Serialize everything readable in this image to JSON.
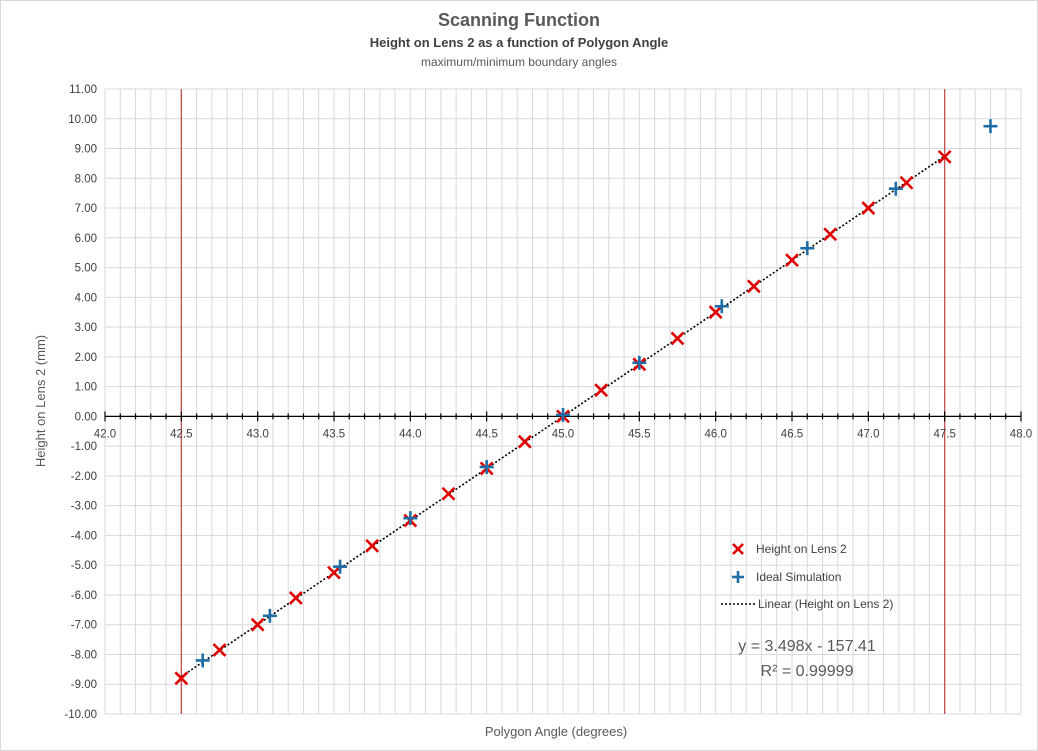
{
  "chart_data": {
    "type": "scatter",
    "title": "Scanning Function",
    "subtitle": "Height on Lens 2 as a function of Polygon Angle",
    "subtitle2": "maximum/minimum boundary angles",
    "xlabel": "Polygon Angle (degrees)",
    "ylabel": "Height on Lens 2 (mm)",
    "xlim": [
      42.0,
      48.0
    ],
    "ylim": [
      -10.0,
      11.0
    ],
    "x_ticks": [
      "42.0",
      "42.5",
      "43.0",
      "43.5",
      "44.0",
      "44.5",
      "45.0",
      "45.5",
      "46.0",
      "46.5",
      "47.0",
      "47.5",
      "48.0"
    ],
    "y_ticks": [
      "11.00",
      "10.00",
      "9.00",
      "8.00",
      "7.00",
      "6.00",
      "5.00",
      "4.00",
      "3.00",
      "2.00",
      "1.00",
      "0.00",
      "-1.00",
      "-2.00",
      "-3.00",
      "-4.00",
      "-5.00",
      "-6.00",
      "-7.00",
      "-8.00",
      "-9.00",
      "-10.00"
    ],
    "grid": true,
    "boundary_lines_x": [
      42.5,
      47.5
    ],
    "colors": {
      "height_marker": "#e00000",
      "ideal_marker": "#1f6ea8",
      "boundary_line": "#c0504d",
      "trendline": "#000000",
      "grid": "#d9d9d9"
    },
    "series": [
      {
        "name": "Height on Lens 2",
        "marker": "x",
        "x": [
          42.5,
          42.75,
          43.0,
          43.25,
          43.5,
          43.75,
          44.0,
          44.25,
          44.5,
          44.75,
          45.0,
          45.25,
          45.5,
          45.75,
          46.0,
          46.25,
          46.5,
          46.75,
          47.0,
          47.25,
          47.5
        ],
        "y": [
          -8.8,
          -7.85,
          -7.0,
          -6.1,
          -5.25,
          -4.35,
          -3.5,
          -2.6,
          -1.75,
          -0.85,
          0.0,
          0.88,
          1.75,
          2.62,
          3.5,
          4.37,
          5.25,
          6.12,
          7.0,
          7.85,
          8.72
        ]
      },
      {
        "name": "Ideal Simulation",
        "marker": "+",
        "x": [
          42.64,
          43.08,
          43.54,
          44.0,
          44.5,
          45.0,
          45.5,
          46.04,
          46.6,
          47.18,
          47.8
        ],
        "y": [
          -8.2,
          -6.7,
          -5.05,
          -3.42,
          -1.7,
          0.05,
          1.8,
          3.7,
          5.65,
          7.65,
          9.75
        ]
      },
      {
        "name": "Linear  (Height on Lens 2)",
        "type": "trendline",
        "slope": 3.498,
        "intercept": -157.41
      }
    ],
    "legend": {
      "position": "bottom-right",
      "entries": [
        "Height on Lens 2",
        "Ideal Simulation",
        "Linear  (Height on Lens 2)"
      ]
    },
    "annotations": [
      "y = 3.498x - 157.41",
      "R² = 0.99999"
    ]
  }
}
